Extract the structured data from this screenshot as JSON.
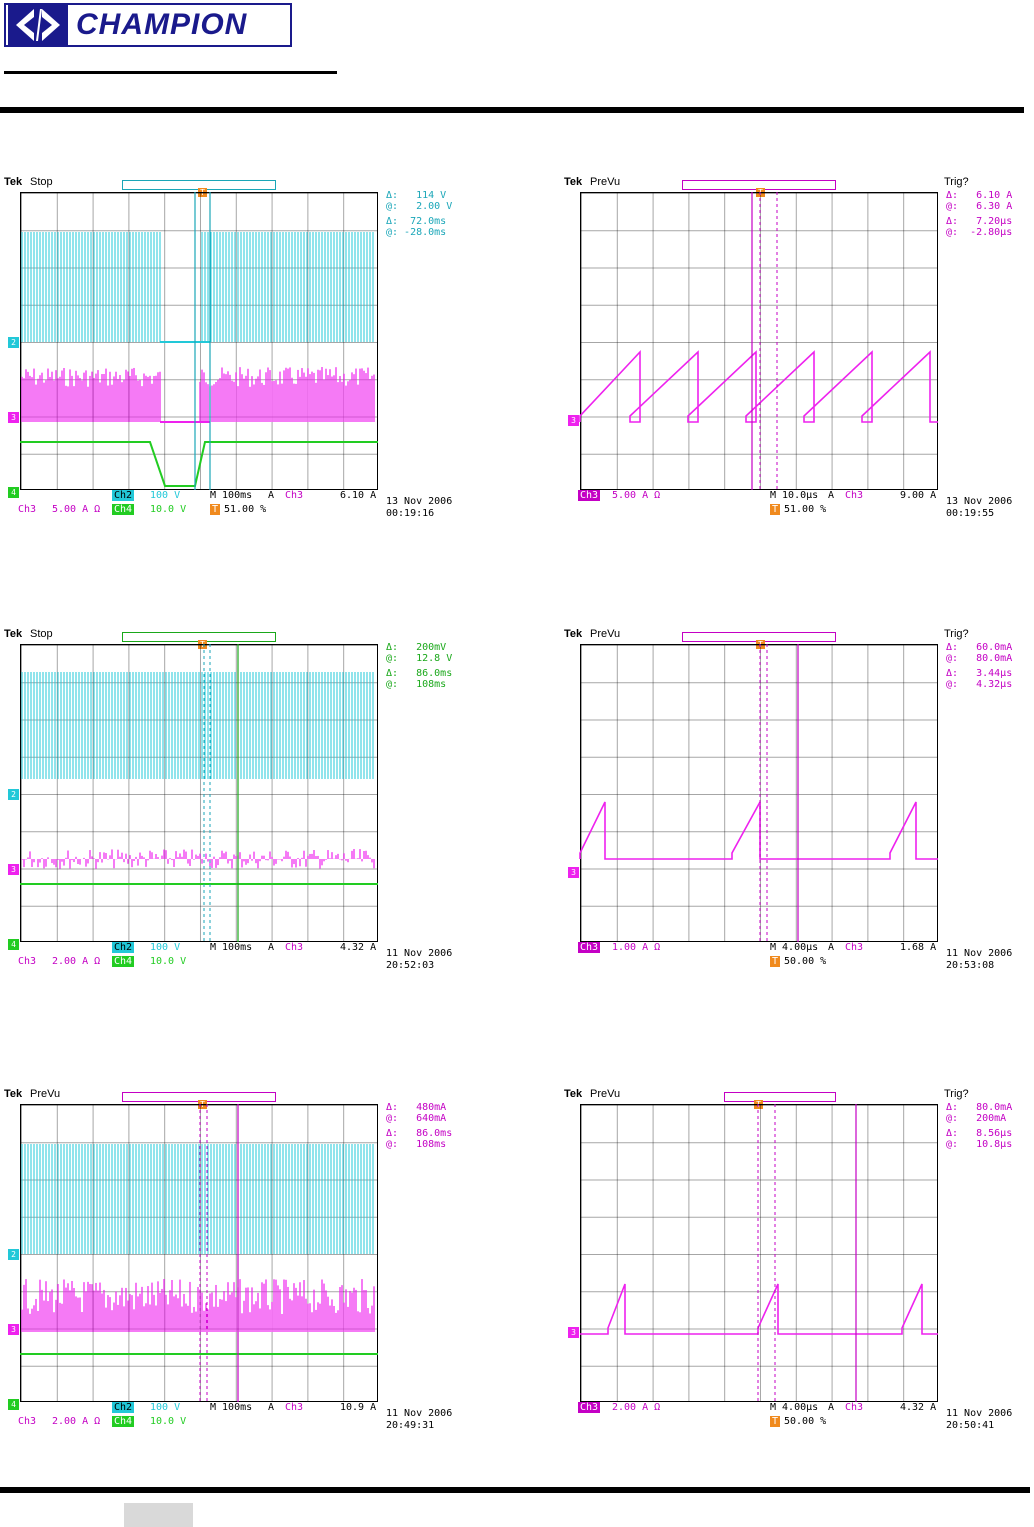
{
  "header": {
    "logo_text": "CHAMPION"
  },
  "scopes": [
    {
      "tek": "Tek",
      "state": "Stop",
      "trig_text": "",
      "meas": [
        "Δ:   114 V",
        "@:   2.00 V",
        "Δ:  72.0ms",
        "@: -28.0ms"
      ],
      "meas_color": "#1aa6b8",
      "ch_row1": {
        "left_label": "",
        "left_value": "",
        "ch_label": "Ch2",
        "ch_value": "100 V",
        "m": "M 100ms",
        "a": "A",
        "ch_trig": "Ch3",
        "trig_val": "6.10 A"
      },
      "ch_row2": {
        "left_label": "Ch3",
        "left_value": "5.00 A Ω",
        "ch_label": "Ch4",
        "ch_value": "10.0 V"
      },
      "t_percent": "51.00 %",
      "date": "13 Nov 2006",
      "time": "00:19:16",
      "channels": [
        "2",
        "3",
        "4"
      ]
    },
    {
      "tek": "Tek",
      "state": "PreVu",
      "trig_text": "Trig?",
      "meas": [
        "Δ:   6.10 A",
        "@:   6.30 A",
        "Δ:   7.20µs",
        "@:  -2.80µs"
      ],
      "meas_color": "#c400c4",
      "ch_row1": {
        "left_label": "Ch3",
        "left_value": "5.00 A Ω",
        "ch_label": "",
        "ch_value": "",
        "m": "M 10.0µs",
        "a": "A",
        "ch_trig": "Ch3",
        "trig_val": "9.00 A"
      },
      "t_percent": "51.00 %",
      "date": "13 Nov 2006",
      "time": "00:19:55",
      "channels": [
        "3"
      ]
    },
    {
      "tek": "Tek",
      "state": "Stop",
      "trig_text": "",
      "meas": [
        "Δ:   200mV",
        "@:   12.8 V",
        "Δ:   86.0ms",
        "@:   108ms"
      ],
      "meas_color": "#1aa81a",
      "ch_row1": {
        "left_label": "",
        "left_value": "",
        "ch_label": "Ch2",
        "ch_value": "100 V",
        "m": "M 100ms",
        "a": "A",
        "ch_trig": "Ch3",
        "trig_val": "4.32 A"
      },
      "ch_row2": {
        "left_label": "Ch3",
        "left_value": "2.00 A Ω",
        "ch_label": "Ch4",
        "ch_value": "10.0 V"
      },
      "t_percent": "",
      "date": "11 Nov 2006",
      "time": "20:52:03",
      "channels": [
        "2",
        "3",
        "4"
      ]
    },
    {
      "tek": "Tek",
      "state": "PreVu",
      "trig_text": "Trig?",
      "meas": [
        "Δ:   60.0mA",
        "@:   80.0mA",
        "Δ:   3.44µs",
        "@:   4.32µs"
      ],
      "meas_color": "#c400c4",
      "ch_row1": {
        "left_label": "Ch3",
        "left_value": "1.00 A Ω",
        "ch_label": "",
        "ch_value": "",
        "m": "M 4.00µs",
        "a": "A",
        "ch_trig": "Ch3",
        "trig_val": "1.68 A"
      },
      "t_percent": "50.00 %",
      "date": "11 Nov 2006",
      "time": "20:53:08",
      "channels": [
        "3"
      ]
    },
    {
      "tek": "Tek",
      "state": "PreVu",
      "trig_text": "",
      "meas": [
        "Δ:   480mA",
        "@:   640mA",
        "Δ:   86.0ms",
        "@:   108ms"
      ],
      "meas_color": "#c400c4",
      "ch_row1": {
        "left_label": "",
        "left_value": "",
        "ch_label": "Ch2",
        "ch_value": "100 V",
        "m": "M 100ms",
        "a": "A",
        "ch_trig": "Ch3",
        "trig_val": "10.9 A"
      },
      "ch_row2": {
        "left_label": "Ch3",
        "left_value": "2.00 A Ω",
        "ch_label": "Ch4",
        "ch_value": "10.0 V"
      },
      "t_percent": "",
      "date": "11 Nov 2006",
      "time": "20:49:31",
      "channels": [
        "2",
        "3",
        "4"
      ]
    },
    {
      "tek": "Tek",
      "state": "PreVu",
      "trig_text": "Trig?",
      "meas": [
        "Δ:   80.0mA",
        "@:   200mA",
        "Δ:   8.56µs",
        "@:   10.8µs"
      ],
      "meas_color": "#c400c4",
      "ch_row1": {
        "left_label": "Ch3",
        "left_value": "2.00 A Ω",
        "ch_label": "",
        "ch_value": "",
        "m": "M 4.00µs",
        "a": "A",
        "ch_trig": "Ch3",
        "trig_val": "4.32 A"
      },
      "t_percent": "50.00 %",
      "date": "11 Nov 2006",
      "time": "20:50:41",
      "channels": [
        "3"
      ]
    }
  ],
  "colors": {
    "cyan": "#22c8d8",
    "magenta": "#ee22ee",
    "green": "#22cc22",
    "orange": "#f08a1e"
  }
}
